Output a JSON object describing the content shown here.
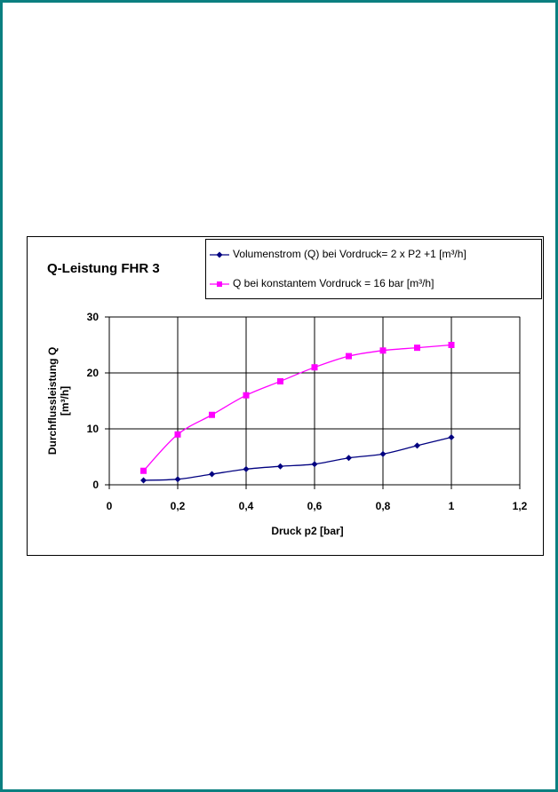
{
  "colors": {
    "frame": "#0b7f80",
    "series_1": "#000080",
    "series_2": "#ff00ff"
  },
  "chart_data": {
    "type": "line",
    "title": "Q-Leistung FHR 3",
    "xlabel": "Druck p2 [bar]",
    "ylabel": [
      "Durchflussleistung Q",
      "[m³/h]"
    ],
    "xlim": [
      0,
      1.2
    ],
    "ylim": [
      0,
      30
    ],
    "x_ticks": [
      "0",
      "0,2",
      "0,4",
      "0,6",
      "0,8",
      "1",
      "1,2"
    ],
    "y_ticks": [
      "0",
      "10",
      "20",
      "30"
    ],
    "grid": true,
    "legend_position": "top-right",
    "series": [
      {
        "name": "Volumenstrom (Q) bei Vordruck= 2 x P2 +1  [m³/h]",
        "marker": "diamond",
        "x": [
          0.1,
          0.2,
          0.3,
          0.4,
          0.5,
          0.6,
          0.7,
          0.8,
          0.9,
          1.0
        ],
        "y": [
          0.8,
          1.0,
          1.9,
          2.8,
          3.3,
          3.7,
          4.8,
          5.5,
          7.0,
          8.5
        ]
      },
      {
        "name": "Q bei konstantem Vordruck = 16 bar [m³/h]",
        "marker": "square",
        "x": [
          0.1,
          0.2,
          0.3,
          0.4,
          0.5,
          0.6,
          0.7,
          0.8,
          0.9,
          1.0
        ],
        "y": [
          2.5,
          9.0,
          12.5,
          16.0,
          18.5,
          21.0,
          23.0,
          24.0,
          24.5,
          25.0
        ]
      }
    ]
  }
}
